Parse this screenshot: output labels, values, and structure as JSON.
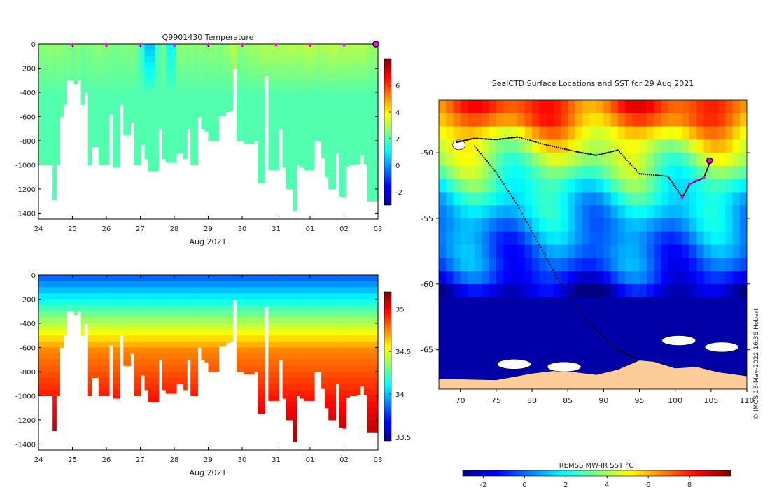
{
  "chart_data": [
    {
      "type": "heatmap",
      "title": "Q9901430  Temperature",
      "xlabel": "Aug 2021",
      "x_tick_labels": [
        "24",
        "25",
        "26",
        "27",
        "28",
        "29",
        "30",
        "31",
        "01",
        "02",
        "03"
      ],
      "xlim": [
        24,
        34
      ],
      "ylim": [
        -1450,
        0
      ],
      "y_ticks": [
        0,
        -200,
        -400,
        -600,
        -800,
        -1000,
        -1200,
        -1400
      ],
      "colorbar": {
        "range": [
          -3,
          8
        ],
        "ticks": [
          -2,
          0,
          2,
          4,
          6
        ]
      },
      "colormap": "jet",
      "marker_days": [
        25,
        26,
        27,
        28,
        29,
        30,
        31,
        32,
        33,
        34
      ],
      "marker_color": "#ff00ff",
      "latest_marker_day": 34,
      "profile_bottom_depths": [
        1000,
        1000,
        1000,
        1000,
        1290,
        1000,
        600,
        500,
        300,
        300,
        330,
        300,
        500,
        400,
        1000,
        850,
        850,
        1000,
        1000,
        1000,
        580,
        1020,
        1020,
        500,
        750,
        750,
        650,
        1000,
        1000,
        830,
        950,
        1050,
        1050,
        1050,
        700,
        950,
        980,
        980,
        980,
        900,
        900,
        950,
        700,
        1000,
        1000,
        600,
        700,
        720,
        800,
        800,
        800,
        590,
        590,
        560,
        550,
        200,
        800,
        800,
        820,
        820,
        820,
        800,
        1150,
        1150,
        260,
        1040,
        1040,
        1040,
        700,
        1020,
        1200,
        1200,
        1380,
        1000,
        1020,
        1040,
        1040,
        1040,
        800,
        800,
        940,
        1100,
        1200,
        1200,
        900,
        1260,
        1270,
        1010,
        1000,
        1000,
        990,
        920,
        990,
        1300,
        1300,
        1300
      ],
      "profile_temperature_surface": [
        2.6,
        2.6,
        2.7,
        2.7,
        2.5,
        2.8,
        2.6,
        2.5,
        2.7,
        2.4,
        2.5,
        2.6,
        2.3,
        2.5,
        2.4,
        2.6,
        2.6,
        2.7,
        2.5,
        2.5,
        2.5,
        2.4,
        2.4,
        2.4,
        2.5,
        2.5,
        2.6,
        2.4,
        2.0,
        1.5,
        0.5,
        0.5,
        0.5,
        1.8,
        2.0,
        2.5,
        1.3,
        1.2,
        1.5,
        2.6,
        2.6,
        2.6,
        2.5,
        2.7,
        2.5,
        2.6,
        2.6,
        2.5,
        2.6,
        2.7,
        2.6,
        2.5,
        2.7,
        2.7,
        3.0,
        3.2,
        2.7,
        2.6,
        2.6,
        2.8,
        2.9,
        2.8,
        2.9,
        3.0,
        3.0,
        3.0,
        3.0,
        3.0,
        3.0,
        3.0,
        3.0,
        3.1,
        3.0,
        3.0,
        3.0,
        3.1,
        3.2,
        3.1,
        3.0,
        2.9,
        3.0,
        3.0,
        3.1,
        3.2,
        3.0,
        3.0,
        3.1,
        3.0,
        3.1,
        3.0,
        3.0,
        3.1,
        3.0,
        2.8,
        2.8,
        2.8
      ],
      "profile_temperature_deep": [
        2.1,
        2.0,
        2.0,
        2.0,
        2.0,
        2.0,
        2.1,
        2.0,
        2.0,
        2.0,
        2.0,
        2.0,
        2.0,
        2.0,
        2.0,
        2.0,
        2.0,
        2.0,
        2.0,
        2.0,
        2.0,
        2.0,
        2.0,
        2.0,
        2.0,
        2.0,
        2.0,
        2.0,
        2.0,
        2.0,
        2.0,
        2.0,
        2.0,
        2.0,
        2.0,
        2.0,
        2.0,
        2.0,
        2.0,
        2.0,
        2.0,
        2.0,
        2.0,
        2.0,
        2.0,
        2.0,
        2.0,
        2.0,
        2.0,
        2.0,
        2.0,
        2.0,
        2.0,
        2.0,
        2.0,
        2.0,
        2.0,
        2.0,
        2.0,
        2.0,
        2.0,
        2.0,
        2.0,
        2.0,
        2.0,
        2.0,
        2.0,
        2.0,
        2.0,
        2.0,
        2.0,
        2.0,
        2.0,
        2.0,
        2.0,
        2.0,
        2.0,
        2.0,
        2.0,
        2.0,
        2.0,
        2.0,
        2.0,
        2.0,
        2.0,
        2.0,
        2.0,
        2.0,
        2.0,
        2.0,
        2.0,
        2.0,
        2.0,
        2.0,
        2.0,
        2.0
      ]
    },
    {
      "type": "heatmap",
      "title": "",
      "xlabel": "Aug 2021",
      "x_tick_labels": [
        "24",
        "25",
        "26",
        "27",
        "28",
        "29",
        "30",
        "31",
        "01",
        "02",
        "03"
      ],
      "xlim": [
        24,
        34
      ],
      "ylim": [
        -1450,
        0
      ],
      "y_ticks": [
        0,
        -200,
        -400,
        -600,
        -800,
        -1000,
        -1200,
        -1400
      ],
      "colorbar": {
        "range": [
          33.45,
          35.2
        ],
        "ticks": [
          33.5,
          34,
          34.5,
          35
        ]
      },
      "colormap": "jet",
      "profile_bottom_depths": [
        1000,
        1000,
        1000,
        1000,
        1290,
        1000,
        600,
        500,
        300,
        300,
        330,
        300,
        500,
        400,
        1000,
        850,
        850,
        1000,
        1000,
        1000,
        580,
        1020,
        1020,
        500,
        750,
        750,
        650,
        1000,
        1000,
        830,
        950,
        1050,
        1050,
        1050,
        700,
        950,
        980,
        980,
        980,
        900,
        900,
        950,
        700,
        1000,
        1000,
        600,
        700,
        720,
        800,
        800,
        800,
        590,
        590,
        560,
        550,
        200,
        800,
        800,
        820,
        820,
        820,
        800,
        1150,
        1150,
        260,
        1040,
        1040,
        1040,
        700,
        1020,
        1200,
        1200,
        1380,
        1000,
        1020,
        1040,
        1040,
        1040,
        800,
        800,
        940,
        1100,
        1200,
        1200,
        900,
        1260,
        1270,
        1010,
        1000,
        1000,
        990,
        920,
        990,
        1300,
        1300,
        1300
      ],
      "salinity_profile": {
        "surface": 33.85,
        "at_300m": 34.3,
        "at_600m": 34.75,
        "at_1000m": 34.95,
        "bottom": 35.1
      }
    },
    {
      "type": "heatmap",
      "title": "SealCTD Surface Locations and SST for 29 Aug 2021",
      "xlim": [
        67,
        110
      ],
      "ylim": [
        -68,
        -46
      ],
      "x_ticks": [
        70,
        75,
        80,
        85,
        90,
        95,
        100,
        105,
        110
      ],
      "y_ticks": [
        -50,
        -55,
        -60,
        -65
      ],
      "colorbar": {
        "label": "REMSS MW-IR SST °C",
        "range": [
          -3,
          10
        ],
        "ticks": [
          -2,
          0,
          2,
          4,
          6,
          8
        ]
      },
      "colormap": "jet",
      "sst_latitude_profile": [
        {
          "lat": -47,
          "sst": 7.5
        },
        {
          "lat": -49,
          "sst": 5.0
        },
        {
          "lat": -51,
          "sst": 3.5
        },
        {
          "lat": -53,
          "sst": 2.0
        },
        {
          "lat": -56,
          "sst": 0.5
        },
        {
          "lat": -59,
          "sst": -0.5
        },
        {
          "lat": -61,
          "sst": -2.5
        }
      ],
      "land_color": "#fccc99",
      "land_edge_lat": -67,
      "ice_patches": [
        {
          "lon": 77.5,
          "lat": -66.1
        },
        {
          "lon": 84.5,
          "lat": -66.3
        },
        {
          "lon": 100.5,
          "lat": -64.3
        },
        {
          "lon": 106.5,
          "lat": -64.8
        }
      ],
      "kerguelen_lon_lat": [
        69.8,
        -49.4
      ],
      "track": [
        [
          69.5,
          -49.2
        ],
        [
          72,
          -48.9
        ],
        [
          75,
          -49.0
        ],
        [
          78,
          -48.8
        ],
        [
          82,
          -49.4
        ],
        [
          86,
          -49.9
        ],
        [
          89,
          -50.2
        ],
        [
          92,
          -49.8
        ],
        [
          95,
          -51.6
        ],
        [
          99,
          -51.8
        ],
        [
          101,
          -53.4
        ],
        [
          102,
          -52.4
        ],
        [
          104,
          -51.9
        ],
        [
          105,
          -50.5
        ]
      ],
      "track_south": [
        [
          72,
          -49.5
        ],
        [
          75,
          -51.5
        ],
        [
          78,
          -54
        ],
        [
          81,
          -57
        ],
        [
          84,
          -60
        ],
        [
          88,
          -63
        ],
        [
          92,
          -65
        ],
        [
          95,
          -65.8
        ]
      ],
      "recent_positions": [
        [
          101,
          -53.4
        ],
        [
          102,
          -52.4
        ],
        [
          103,
          -52.1
        ],
        [
          104,
          -51.9
        ]
      ],
      "latest_position": [
        104.8,
        -50.6
      ],
      "marker_color": "#ff00ff"
    }
  ],
  "watermark": "© IMOS 18-May-2022 16:36 Hobart"
}
